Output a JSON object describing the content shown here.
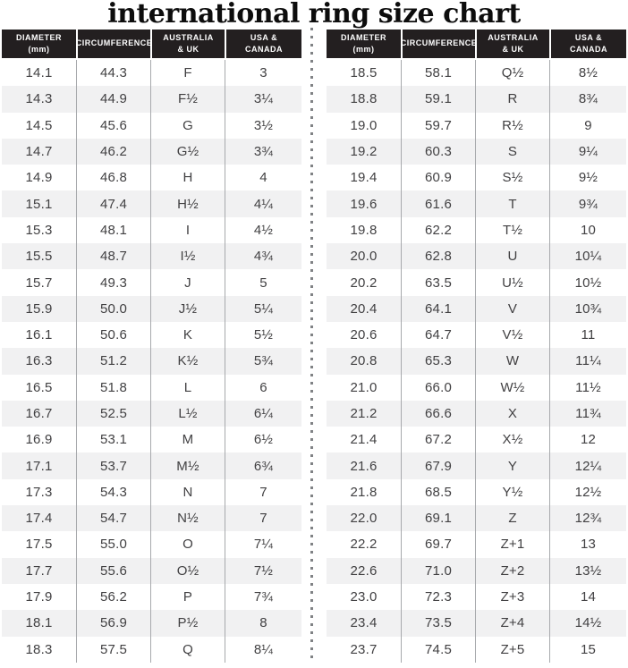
{
  "chart_data": {
    "type": "table",
    "title": "international ring size chart",
    "columns": [
      "DIAMETER (mm)",
      "CIRCUMFERENCE",
      "AUSTRALIA & UK",
      "USA & CANADA"
    ],
    "left_rows": [
      [
        "14.1",
        "44.3",
        "F",
        "3"
      ],
      [
        "14.3",
        "44.9",
        "F½",
        "3¼"
      ],
      [
        "14.5",
        "45.6",
        "G",
        "3½"
      ],
      [
        "14.7",
        "46.2",
        "G½",
        "3¾"
      ],
      [
        "14.9",
        "46.8",
        "H",
        "4"
      ],
      [
        "15.1",
        "47.4",
        "H½",
        "4¼"
      ],
      [
        "15.3",
        "48.1",
        "I",
        "4½"
      ],
      [
        "15.5",
        "48.7",
        "I½",
        "4¾"
      ],
      [
        "15.7",
        "49.3",
        "J",
        "5"
      ],
      [
        "15.9",
        "50.0",
        "J½",
        "5¼"
      ],
      [
        "16.1",
        "50.6",
        "K",
        "5½"
      ],
      [
        "16.3",
        "51.2",
        "K½",
        "5¾"
      ],
      [
        "16.5",
        "51.8",
        "L",
        "6"
      ],
      [
        "16.7",
        "52.5",
        "L½",
        "6¼"
      ],
      [
        "16.9",
        "53.1",
        "M",
        "6½"
      ],
      [
        "17.1",
        "53.7",
        "M½",
        "6¾"
      ],
      [
        "17.3",
        "54.3",
        "N",
        "7"
      ],
      [
        "17.4",
        "54.7",
        "N½",
        "7"
      ],
      [
        "17.5",
        "55.0",
        "O",
        "7¼"
      ],
      [
        "17.7",
        "55.6",
        "O½",
        "7½"
      ],
      [
        "17.9",
        "56.2",
        "P",
        "7¾"
      ],
      [
        "18.1",
        "56.9",
        "P½",
        "8"
      ],
      [
        "18.3",
        "57.5",
        "Q",
        "8¼"
      ]
    ],
    "right_rows": [
      [
        "18.5",
        "58.1",
        "Q½",
        "8½"
      ],
      [
        "18.8",
        "59.1",
        "R",
        "8¾"
      ],
      [
        "19.0",
        "59.7",
        "R½",
        "9"
      ],
      [
        "19.2",
        "60.3",
        "S",
        "9¼"
      ],
      [
        "19.4",
        "60.9",
        "S½",
        "9½"
      ],
      [
        "19.6",
        "61.6",
        "T",
        "9¾"
      ],
      [
        "19.8",
        "62.2",
        "T½",
        "10"
      ],
      [
        "20.0",
        "62.8",
        "U",
        "10¼"
      ],
      [
        "20.2",
        "63.5",
        "U½",
        "10½"
      ],
      [
        "20.4",
        "64.1",
        "V",
        "10¾"
      ],
      [
        "20.6",
        "64.7",
        "V½",
        "11"
      ],
      [
        "20.8",
        "65.3",
        "W",
        "11¼"
      ],
      [
        "21.0",
        "66.0",
        "W½",
        "11½"
      ],
      [
        "21.2",
        "66.6",
        "X",
        "11¾"
      ],
      [
        "21.4",
        "67.2",
        "X½",
        "12"
      ],
      [
        "21.6",
        "67.9",
        "Y",
        "12¼"
      ],
      [
        "21.8",
        "68.5",
        "Y½",
        "12½"
      ],
      [
        "22.0",
        "69.1",
        "Z",
        "12¾"
      ],
      [
        "22.2",
        "69.7",
        "Z+1",
        "13"
      ],
      [
        "22.6",
        "71.0",
        "Z+2",
        "13½"
      ],
      [
        "23.0",
        "72.3",
        "Z+3",
        "14"
      ],
      [
        "23.4",
        "73.5",
        "Z+4",
        "14½"
      ],
      [
        "23.7",
        "74.5",
        "Z+5",
        "15"
      ]
    ]
  },
  "header_columns": [
    {
      "line1": "DIAMETER",
      "line2": "(mm)"
    },
    {
      "line1": "CIRCUMFERENCE",
      "line2": ""
    },
    {
      "line1": "AUSTRALIA",
      "line2": "& UK"
    },
    {
      "line1": "USA &",
      "line2": "CANADA"
    }
  ],
  "colors": {
    "header_bg": "#231f20",
    "header_text": "#ffffff",
    "row_alt_bg": "#f1f1f2",
    "body_text": "#414042",
    "title_text": "#0d0d0d",
    "divider_dot": "#808285",
    "column_line": "#a7a9ac",
    "page_bg": "#ffffff"
  }
}
